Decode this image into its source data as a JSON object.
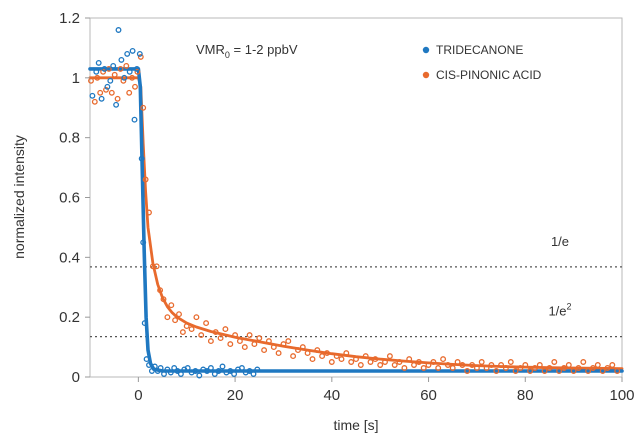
{
  "chart_data": {
    "type": "scatter",
    "xlabel": "time [s]",
    "ylabel": "normalized intensity",
    "xlim": [
      -10,
      100
    ],
    "ylim": [
      0,
      1.2
    ],
    "xticks": [
      0,
      20,
      40,
      60,
      80,
      100
    ],
    "yticks": [
      0,
      0.2,
      0.4,
      0.6,
      0.8,
      1,
      1.2
    ],
    "ytick_labels": [
      "0",
      "0.2",
      "0.4",
      "0.6",
      "0.8",
      "1",
      "1.2"
    ],
    "grid": false,
    "legend_position": "top-right",
    "annotation": {
      "main": "VMR",
      "sub": "0",
      "rest": " = 1-2 ppbV"
    },
    "thresholds": [
      {
        "value": 0.368,
        "label": "1/e",
        "sup": ""
      },
      {
        "value": 0.135,
        "label": "1/e",
        "sup": "2"
      }
    ],
    "series": [
      {
        "name": "TRIDECANONE",
        "color": "#1f78c1",
        "points": [
          [
            -9.5,
            0.94
          ],
          [
            -8.7,
            1.02
          ],
          [
            -8.2,
            1.05
          ],
          [
            -7.6,
            0.93
          ],
          [
            -7.0,
            1.03
          ],
          [
            -6.4,
            0.97
          ],
          [
            -5.8,
            0.99
          ],
          [
            -5.2,
            1.04
          ],
          [
            -4.6,
            0.91
          ],
          [
            -4.1,
            1.16
          ],
          [
            -3.5,
            1.06
          ],
          [
            -2.9,
            1.0
          ],
          [
            -2.3,
            1.08
          ],
          [
            -1.8,
            1.02
          ],
          [
            -1.2,
            1.09
          ],
          [
            -0.8,
            0.86
          ],
          [
            -0.3,
            1.03
          ],
          [
            0.3,
            1.08
          ],
          [
            0.7,
            0.73
          ],
          [
            1.0,
            0.45
          ],
          [
            1.3,
            0.18
          ],
          [
            1.7,
            0.06
          ],
          [
            2.2,
            0.04
          ],
          [
            2.8,
            0.02
          ],
          [
            3.4,
            0.035
          ],
          [
            4.0,
            0.02
          ],
          [
            4.6,
            0.03
          ],
          [
            5.3,
            0.01
          ],
          [
            6.0,
            0.025
          ],
          [
            6.7,
            0.015
          ],
          [
            7.4,
            0.03
          ],
          [
            8.1,
            0.02
          ],
          [
            8.8,
            0.01
          ],
          [
            9.5,
            0.025
          ],
          [
            10.2,
            0.03
          ],
          [
            11.0,
            0.015
          ],
          [
            11.8,
            0.02
          ],
          [
            12.6,
            0.005
          ],
          [
            13.4,
            0.025
          ],
          [
            14.2,
            0.02
          ],
          [
            15.0,
            0.03
          ],
          [
            15.8,
            0.01
          ],
          [
            16.6,
            0.02
          ],
          [
            17.4,
            0.035
          ],
          [
            18.2,
            0.015
          ],
          [
            19.0,
            0.02
          ],
          [
            19.8,
            0.01
          ],
          [
            20.6,
            0.025
          ],
          [
            21.4,
            0.03
          ],
          [
            22.2,
            0.015
          ],
          [
            23.0,
            0.02
          ],
          [
            23.8,
            0.01
          ],
          [
            24.6,
            0.025
          ]
        ],
        "fit": [
          [
            -10,
            1.03
          ],
          [
            0,
            1.03
          ],
          [
            0.4,
            0.97
          ],
          [
            0.8,
            0.7
          ],
          [
            1.2,
            0.42
          ],
          [
            1.6,
            0.2
          ],
          [
            2.0,
            0.09
          ],
          [
            2.5,
            0.045
          ],
          [
            3.2,
            0.026
          ],
          [
            5,
            0.02
          ],
          [
            100,
            0.02
          ]
        ]
      },
      {
        "name": "CIS-PINONIC ACID",
        "color": "#e86a2d",
        "points": [
          [
            -9.8,
            0.99
          ],
          [
            -9.0,
            0.92
          ],
          [
            -8.5,
            1.0
          ],
          [
            -7.9,
            0.95
          ],
          [
            -7.3,
            1.02
          ],
          [
            -6.7,
            0.96
          ],
          [
            -6.1,
            1.03
          ],
          [
            -5.5,
            0.95
          ],
          [
            -4.9,
            1.01
          ],
          [
            -4.3,
            0.93
          ],
          [
            -3.7,
            1.03
          ],
          [
            -3.1,
            0.99
          ],
          [
            -2.5,
            1.04
          ],
          [
            -1.9,
            0.95
          ],
          [
            -1.3,
            1.0
          ],
          [
            -0.7,
            0.97
          ],
          [
            -0.2,
            1.02
          ],
          [
            0.5,
            1.07
          ],
          [
            1.0,
            0.9
          ],
          [
            1.5,
            0.66
          ],
          [
            2.2,
            0.55
          ],
          [
            3.0,
            0.37
          ],
          [
            3.8,
            0.37
          ],
          [
            4.5,
            0.29
          ],
          [
            5.2,
            0.26
          ],
          [
            6.0,
            0.2
          ],
          [
            6.8,
            0.24
          ],
          [
            7.6,
            0.19
          ],
          [
            8.4,
            0.21
          ],
          [
            9.2,
            0.15
          ],
          [
            10.0,
            0.17
          ],
          [
            11.0,
            0.16
          ],
          [
            12.0,
            0.2
          ],
          [
            13.0,
            0.14
          ],
          [
            14.0,
            0.18
          ],
          [
            15.0,
            0.12
          ],
          [
            16.0,
            0.15
          ],
          [
            17.0,
            0.13
          ],
          [
            18.0,
            0.16
          ],
          [
            19.0,
            0.11
          ],
          [
            20.0,
            0.14
          ],
          [
            21.0,
            0.12
          ],
          [
            22.0,
            0.1
          ],
          [
            23.0,
            0.14
          ],
          [
            24.0,
            0.11
          ],
          [
            25.0,
            0.13
          ],
          [
            26.0,
            0.09
          ],
          [
            27.0,
            0.12
          ],
          [
            28.0,
            0.1
          ],
          [
            29.0,
            0.08
          ],
          [
            30.0,
            0.11
          ],
          [
            31.0,
            0.12
          ],
          [
            32.0,
            0.07
          ],
          [
            33.0,
            0.09
          ],
          [
            34.0,
            0.1
          ],
          [
            35.0,
            0.08
          ],
          [
            36.0,
            0.06
          ],
          [
            37.0,
            0.09
          ],
          [
            38.0,
            0.07
          ],
          [
            39.0,
            0.08
          ],
          [
            40.0,
            0.05
          ],
          [
            41.0,
            0.07
          ],
          [
            42.0,
            0.06
          ],
          [
            43.0,
            0.08
          ],
          [
            44.0,
            0.05
          ],
          [
            45.0,
            0.06
          ],
          [
            46.0,
            0.04
          ],
          [
            47.0,
            0.07
          ],
          [
            48.0,
            0.05
          ],
          [
            49.0,
            0.06
          ],
          [
            50.0,
            0.04
          ],
          [
            51.0,
            0.05
          ],
          [
            52.0,
            0.07
          ],
          [
            53.0,
            0.04
          ],
          [
            54.0,
            0.05
          ],
          [
            55.0,
            0.03
          ],
          [
            56.0,
            0.06
          ],
          [
            57.0,
            0.04
          ],
          [
            58.0,
            0.05
          ],
          [
            59.0,
            0.03
          ],
          [
            60.0,
            0.04
          ],
          [
            61.0,
            0.05
          ],
          [
            62.0,
            0.03
          ],
          [
            63.0,
            0.06
          ],
          [
            64.0,
            0.04
          ],
          [
            65.0,
            0.03
          ],
          [
            66.0,
            0.05
          ],
          [
            67.0,
            0.04
          ],
          [
            68.0,
            0.02
          ],
          [
            69.0,
            0.04
          ],
          [
            70.0,
            0.03
          ],
          [
            71.0,
            0.05
          ],
          [
            72.0,
            0.03
          ],
          [
            73.0,
            0.04
          ],
          [
            74.0,
            0.02
          ],
          [
            75.0,
            0.04
          ],
          [
            76.0,
            0.03
          ],
          [
            77.0,
            0.05
          ],
          [
            78.0,
            0.02
          ],
          [
            79.0,
            0.03
          ],
          [
            80.0,
            0.04
          ],
          [
            81.0,
            0.02
          ],
          [
            82.0,
            0.03
          ],
          [
            83.0,
            0.04
          ],
          [
            84.0,
            0.02
          ],
          [
            85.0,
            0.03
          ],
          [
            86.0,
            0.05
          ],
          [
            87.0,
            0.02
          ],
          [
            88.0,
            0.03
          ],
          [
            89.0,
            0.04
          ],
          [
            90.0,
            0.02
          ],
          [
            91.0,
            0.03
          ],
          [
            92.0,
            0.05
          ],
          [
            93.0,
            0.02
          ],
          [
            94.0,
            0.03
          ],
          [
            95.0,
            0.04
          ],
          [
            96.0,
            0.02
          ],
          [
            97.0,
            0.03
          ],
          [
            98.0,
            0.04
          ],
          [
            99.0,
            0.02
          ]
        ],
        "fit": [
          [
            -10,
            1.0
          ],
          [
            0,
            1.0
          ],
          [
            0.5,
            0.97
          ],
          [
            1.0,
            0.78
          ],
          [
            1.5,
            0.62
          ],
          [
            2.0,
            0.5
          ],
          [
            3,
            0.38
          ],
          [
            4,
            0.31
          ],
          [
            5,
            0.265
          ],
          [
            6,
            0.235
          ],
          [
            7,
            0.215
          ],
          [
            8,
            0.2
          ],
          [
            10,
            0.18
          ],
          [
            12,
            0.167
          ],
          [
            15,
            0.152
          ],
          [
            20,
            0.133
          ],
          [
            25,
            0.118
          ],
          [
            30,
            0.103
          ],
          [
            35,
            0.09
          ],
          [
            40,
            0.078
          ],
          [
            45,
            0.068
          ],
          [
            50,
            0.06
          ],
          [
            55,
            0.053
          ],
          [
            60,
            0.047
          ],
          [
            65,
            0.042
          ],
          [
            70,
            0.038
          ],
          [
            75,
            0.035
          ],
          [
            80,
            0.033
          ],
          [
            85,
            0.031
          ],
          [
            90,
            0.03
          ],
          [
            95,
            0.029
          ],
          [
            100,
            0.028
          ]
        ]
      }
    ]
  }
}
